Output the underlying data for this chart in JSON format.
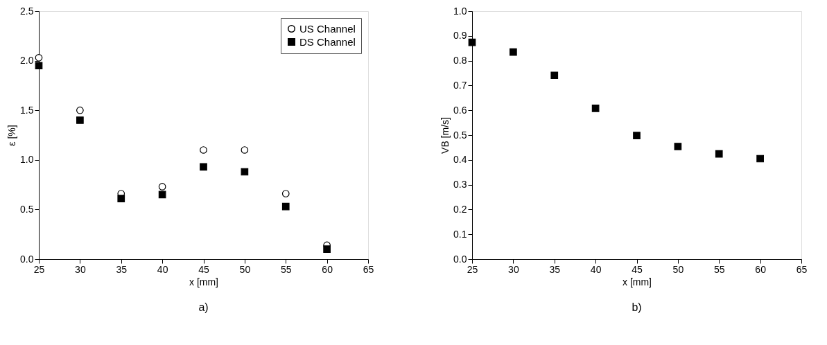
{
  "chart_data": [
    {
      "type": "scatter",
      "xlabel": "x [mm]",
      "ylabel": "ε [%]",
      "x": [
        25,
        30,
        35,
        40,
        45,
        50,
        55,
        60
      ],
      "xlim": [
        25,
        65
      ],
      "xticks": [
        25,
        30,
        35,
        40,
        45,
        50,
        55,
        60,
        65
      ],
      "ylim": [
        0,
        2.5
      ],
      "yticks": [
        {
          "value": 0,
          "label": "0.0"
        },
        0.5,
        {
          "value": 1,
          "label": "1.0"
        },
        1.5,
        {
          "value": 2,
          "label": "2.0"
        },
        2.5
      ],
      "grid": false,
      "legend": "top right",
      "series": [
        {
          "name": "US Channel",
          "color": "#000000",
          "marker": "circle",
          "values": [
            2.03,
            1.5,
            0.66,
            0.73,
            1.1,
            1.1,
            0.66,
            0.14
          ]
        },
        {
          "name": "DS Channel",
          "color": "#000000",
          "marker": "square",
          "values": [
            1.95,
            1.4,
            0.61,
            0.65,
            0.93,
            0.88,
            0.53,
            0.1
          ]
        }
      ],
      "annotations": [
        "a)"
      ]
    },
    {
      "type": "scatter",
      "xlabel": "x [mm]",
      "ylabel": "VB [m/s]",
      "x": [
        25,
        30,
        35,
        40,
        45,
        50,
        55,
        60
      ],
      "xlim": [
        25,
        65
      ],
      "xticks": [
        25,
        30,
        35,
        40,
        45,
        50,
        55,
        60,
        65
      ],
      "ylim": [
        0,
        1.0
      ],
      "yticks": [
        {
          "value": 0,
          "label": "0.0"
        },
        0.1,
        0.2,
        0.3,
        0.4,
        0.5,
        0.6,
        0.7,
        0.8,
        0.9,
        {
          "value": 1,
          "label": "1.0"
        }
      ],
      "grid": false,
      "series": [
        {
          "color": "#000000",
          "marker": "square",
          "values": [
            0.874,
            0.835,
            0.741,
            0.608,
            0.498,
            0.454,
            0.424,
            0.405
          ]
        }
      ],
      "annotations": [
        "b)"
      ]
    }
  ]
}
